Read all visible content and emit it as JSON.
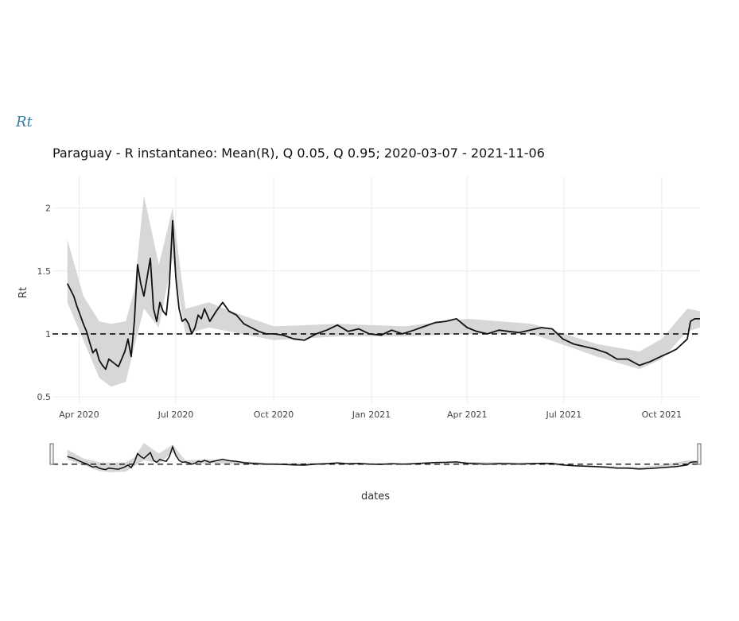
{
  "header": {
    "heading": "Rt"
  },
  "chart_data": {
    "type": "line",
    "title": "Paraguay - R instantaneo: Mean(R), Q 0.05, Q 0.95;  2020-03-07 - 2021-11-06",
    "xlabel": "dates",
    "ylabel": "Rt",
    "ylim": [
      0.45,
      2.25
    ],
    "xlim": [
      "2020-03-07",
      "2021-11-06"
    ],
    "y_ticks": [
      0.5,
      1,
      1.5,
      2
    ],
    "y_tick_labels": [
      "0.5",
      "1",
      "1.5",
      "2"
    ],
    "x_ticks": [
      "2020-04-01",
      "2020-07-01",
      "2020-10-01",
      "2021-01-01",
      "2021-04-01",
      "2021-07-01",
      "2021-10-01"
    ],
    "x_tick_labels": [
      "Apr 2020",
      "Jul 2020",
      "Oct 2020",
      "Jan 2021",
      "Apr 2021",
      "Jul 2021",
      "Oct 2021"
    ],
    "grid": true,
    "reference_line": 1,
    "range_slider": true,
    "colors": {
      "line": "#111111",
      "band": "#d3d3d3",
      "grid": "#ebebeb",
      "heading": "#3a7ca5"
    },
    "series": [
      {
        "name": "Mean(R)",
        "style": "line",
        "x": [
          "2020-03-21",
          "2020-03-24",
          "2020-03-27",
          "2020-03-30",
          "2020-04-02",
          "2020-04-05",
          "2020-04-08",
          "2020-04-11",
          "2020-04-14",
          "2020-04-17",
          "2020-04-20",
          "2020-04-23",
          "2020-04-26",
          "2020-04-29",
          "2020-05-02",
          "2020-05-05",
          "2020-05-08",
          "2020-05-11",
          "2020-05-14",
          "2020-05-17",
          "2020-05-20",
          "2020-05-23",
          "2020-05-26",
          "2020-05-29",
          "2020-06-01",
          "2020-06-04",
          "2020-06-07",
          "2020-06-10",
          "2020-06-13",
          "2020-06-16",
          "2020-06-19",
          "2020-06-22",
          "2020-06-25",
          "2020-06-28",
          "2020-07-01",
          "2020-07-04",
          "2020-07-07",
          "2020-07-10",
          "2020-07-13",
          "2020-07-16",
          "2020-07-19",
          "2020-07-22",
          "2020-07-25",
          "2020-07-28",
          "2020-08-02",
          "2020-08-08",
          "2020-08-14",
          "2020-08-20",
          "2020-08-27",
          "2020-09-03",
          "2020-09-10",
          "2020-09-17",
          "2020-09-24",
          "2020-10-01",
          "2020-10-10",
          "2020-10-20",
          "2020-10-30",
          "2020-11-10",
          "2020-11-20",
          "2020-11-30",
          "2020-12-10",
          "2020-12-20",
          "2020-12-30",
          "2021-01-10",
          "2021-01-20",
          "2021-01-30",
          "2021-02-10",
          "2021-02-20",
          "2021-03-02",
          "2021-03-12",
          "2021-03-22",
          "2021-04-01",
          "2021-04-10",
          "2021-04-20",
          "2021-05-01",
          "2021-05-10",
          "2021-05-20",
          "2021-05-30",
          "2021-06-10",
          "2021-06-20",
          "2021-06-30",
          "2021-07-10",
          "2021-07-20",
          "2021-07-30",
          "2021-08-10",
          "2021-08-20",
          "2021-08-30",
          "2021-09-10",
          "2021-09-20",
          "2021-09-30",
          "2021-10-08",
          "2021-10-15",
          "2021-10-20",
          "2021-10-25",
          "2021-10-28",
          "2021-11-01",
          "2021-11-06"
        ],
        "y": [
          1.4,
          1.35,
          1.3,
          1.22,
          1.15,
          1.08,
          1.02,
          0.93,
          0.85,
          0.88,
          0.79,
          0.75,
          0.72,
          0.8,
          0.78,
          0.76,
          0.74,
          0.8,
          0.86,
          0.96,
          0.82,
          1.1,
          1.55,
          1.4,
          1.3,
          1.45,
          1.6,
          1.2,
          1.1,
          1.25,
          1.18,
          1.15,
          1.4,
          1.9,
          1.45,
          1.2,
          1.1,
          1.12,
          1.08,
          1.0,
          1.05,
          1.15,
          1.12,
          1.2,
          1.1,
          1.18,
          1.25,
          1.18,
          1.15,
          1.08,
          1.05,
          1.02,
          1.0,
          1.0,
          0.99,
          0.96,
          0.95,
          1.0,
          1.03,
          1.07,
          1.02,
          1.04,
          1.0,
          0.99,
          1.03,
          1.0,
          1.03,
          1.06,
          1.09,
          1.1,
          1.12,
          1.05,
          1.02,
          1.0,
          1.03,
          1.02,
          1.01,
          1.03,
          1.05,
          1.04,
          0.96,
          0.92,
          0.9,
          0.88,
          0.85,
          0.8,
          0.8,
          0.75,
          0.78,
          0.82,
          0.85,
          0.88,
          0.92,
          0.96,
          1.1,
          1.12,
          1.12
        ]
      },
      {
        "name": "Q 0.05",
        "style": "band-lower",
        "x": [
          "2020-03-21",
          "2020-04-05",
          "2020-04-20",
          "2020-05-01",
          "2020-05-15",
          "2020-05-23",
          "2020-06-01",
          "2020-06-15",
          "2020-06-28",
          "2020-07-10",
          "2020-08-01",
          "2020-09-01",
          "2020-10-01",
          "2020-12-01",
          "2021-02-01",
          "2021-04-01",
          "2021-06-01",
          "2021-08-01",
          "2021-09-10",
          "2021-10-01",
          "2021-10-25",
          "2021-11-06"
        ],
        "y": [
          1.25,
          0.95,
          0.65,
          0.58,
          0.62,
          0.9,
          1.2,
          1.05,
          1.6,
          1.0,
          1.05,
          1.0,
          0.95,
          0.98,
          0.98,
          1.0,
          1.0,
          0.82,
          0.72,
          0.8,
          1.02,
          1.05
        ]
      },
      {
        "name": "Q 0.95",
        "style": "band-upper",
        "x": [
          "2020-03-21",
          "2020-04-05",
          "2020-04-20",
          "2020-05-01",
          "2020-05-15",
          "2020-05-23",
          "2020-06-01",
          "2020-06-15",
          "2020-06-28",
          "2020-07-10",
          "2020-08-01",
          "2020-09-01",
          "2020-10-01",
          "2020-12-01",
          "2021-02-01",
          "2021-04-01",
          "2021-06-01",
          "2021-08-01",
          "2021-09-10",
          "2021-10-01",
          "2021-10-25",
          "2021-11-06"
        ],
        "y": [
          1.75,
          1.3,
          1.1,
          1.08,
          1.1,
          1.35,
          2.1,
          1.55,
          2.0,
          1.2,
          1.25,
          1.15,
          1.06,
          1.08,
          1.06,
          1.12,
          1.08,
          0.92,
          0.86,
          0.96,
          1.2,
          1.18
        ]
      }
    ]
  }
}
